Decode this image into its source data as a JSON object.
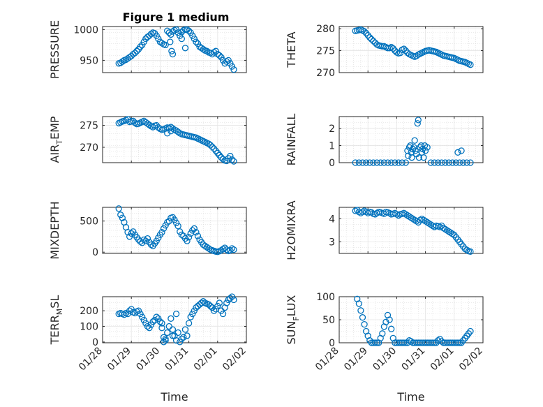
{
  "figure": {
    "title": "Figure 1 medium",
    "marker_color": "#0072BD",
    "axis_color": "#262626",
    "grid_color": "#d9d9d9"
  },
  "chart_data": [
    {
      "type": "scatter",
      "ylabel": "PRESSURE",
      "ylabel_sub": "",
      "ylim": [
        930,
        1005
      ],
      "yticks": [
        950,
        1000
      ],
      "ytick_labels": [
        "950",
        "1000"
      ],
      "xlim": [
        0,
        4
      ],
      "x_tick_labels": [],
      "x": [
        0.45,
        0.5,
        0.55,
        0.6,
        0.65,
        0.7,
        0.75,
        0.8,
        0.85,
        0.9,
        0.95,
        1.0,
        1.05,
        1.1,
        1.15,
        1.2,
        1.25,
        1.3,
        1.35,
        1.4,
        1.45,
        1.5,
        1.55,
        1.6,
        1.65,
        1.7,
        1.75,
        1.8,
        1.85,
        1.9,
        1.95,
        2.0,
        2.05,
        2.1,
        2.15,
        2.2,
        2.25,
        2.3,
        2.35,
        2.4,
        2.45,
        2.5,
        2.55,
        2.6,
        2.65,
        2.7,
        2.75,
        2.8,
        2.85,
        2.9,
        2.95,
        3.0,
        3.05,
        3.1,
        3.15,
        3.2,
        3.25,
        3.3,
        3.35,
        3.4,
        3.45,
        3.5,
        3.55,
        3.6,
        3.65,
        1.88,
        1.92,
        1.95,
        2.2,
        2.3
      ],
      "y": [
        945,
        946,
        948,
        950,
        951,
        953,
        955,
        957,
        960,
        962,
        965,
        968,
        972,
        975,
        980,
        985,
        988,
        990,
        993,
        995,
        994,
        990,
        985,
        980,
        978,
        976,
        975,
        998,
        995,
        992,
        997,
        999,
        1000,
        995,
        990,
        996,
        999,
        1000,
        1000,
        998,
        995,
        990,
        985,
        980,
        977,
        972,
        970,
        968,
        966,
        965,
        963,
        962,
        960,
        963,
        965,
        960,
        958,
        955,
        950,
        945,
        948,
        950,
        945,
        940,
        935,
        980,
        965,
        960,
        985,
        970
      ]
    },
    {
      "type": "scatter",
      "ylabel": "THETA",
      "ylabel_sub": "",
      "ylim": [
        270,
        280.5
      ],
      "yticks": [
        270,
        275,
        280
      ],
      "ytick_labels": [
        "270",
        "275",
        "280"
      ],
      "xlim": [
        0,
        4
      ],
      "x_tick_labels": [],
      "x": [
        0.45,
        0.5,
        0.55,
        0.6,
        0.65,
        0.7,
        0.75,
        0.8,
        0.85,
        0.9,
        0.95,
        1.0,
        1.05,
        1.1,
        1.15,
        1.2,
        1.25,
        1.3,
        1.35,
        1.4,
        1.45,
        1.5,
        1.55,
        1.6,
        1.65,
        1.7,
        1.75,
        1.8,
        1.85,
        1.9,
        1.95,
        2.0,
        2.05,
        2.1,
        2.15,
        2.2,
        2.25,
        2.3,
        2.35,
        2.4,
        2.45,
        2.5,
        2.55,
        2.6,
        2.65,
        2.7,
        2.75,
        2.8,
        2.85,
        2.9,
        2.95,
        3.0,
        3.05,
        3.1,
        3.15,
        3.2,
        3.25,
        3.3,
        3.35,
        3.4,
        3.45,
        3.5,
        3.55,
        3.6,
        3.65
      ],
      "y": [
        279.5,
        279.6,
        279.7,
        279.8,
        279.6,
        279.4,
        279.0,
        278.5,
        278.0,
        277.6,
        277.2,
        276.8,
        276.4,
        276.2,
        276.1,
        276.0,
        276.0,
        275.8,
        275.6,
        275.6,
        275.8,
        275.5,
        275.0,
        274.6,
        274.4,
        274.5,
        275.2,
        275.4,
        275.0,
        274.5,
        274.2,
        274.0,
        273.8,
        273.6,
        273.8,
        274.1,
        274.3,
        274.5,
        274.7,
        274.9,
        275.0,
        275.1,
        275.0,
        274.9,
        274.8,
        274.7,
        274.5,
        274.3,
        274.1,
        273.9,
        273.8,
        273.7,
        273.6,
        273.5,
        273.4,
        273.3,
        273.1,
        272.9,
        272.7,
        272.6,
        272.5,
        272.4,
        272.2,
        272.0,
        271.8
      ]
    },
    {
      "type": "scatter",
      "ylabel": "AIR",
      "ylabel_sub": "T",
      "ylabel_tail": "EMP",
      "ylim": [
        266.5,
        277
      ],
      "yticks": [
        270,
        275
      ],
      "ytick_labels": [
        "270",
        "275"
      ],
      "xlim": [
        0,
        4
      ],
      "x_tick_labels": [],
      "x": [
        0.45,
        0.5,
        0.55,
        0.6,
        0.65,
        0.7,
        0.75,
        0.8,
        0.85,
        0.9,
        0.95,
        1.0,
        1.05,
        1.1,
        1.15,
        1.2,
        1.25,
        1.3,
        1.35,
        1.4,
        1.45,
        1.5,
        1.55,
        1.6,
        1.65,
        1.7,
        1.75,
        1.8,
        1.85,
        1.9,
        1.95,
        2.0,
        2.05,
        2.1,
        2.15,
        2.2,
        2.25,
        2.3,
        2.35,
        2.4,
        2.45,
        2.5,
        2.55,
        2.6,
        2.65,
        2.7,
        2.75,
        2.8,
        2.85,
        2.9,
        2.95,
        3.0,
        3.05,
        3.1,
        3.15,
        3.2,
        3.25,
        3.3,
        3.35,
        3.4,
        3.45,
        3.5,
        3.55,
        3.6,
        3.65,
        1.8,
        1.9
      ],
      "y": [
        275.5,
        275.7,
        275.9,
        276.0,
        276.2,
        276.4,
        275.8,
        275.9,
        276.0,
        275.6,
        275.3,
        275.4,
        275.6,
        275.8,
        276.0,
        275.7,
        275.4,
        275.1,
        274.8,
        274.6,
        274.9,
        275.0,
        274.5,
        274.2,
        274.0,
        274.1,
        274.3,
        274.5,
        274.4,
        274.6,
        274.3,
        274.0,
        273.8,
        273.5,
        273.2,
        273.0,
        272.9,
        272.8,
        272.7,
        272.6,
        272.5,
        272.4,
        272.3,
        272.2,
        272.0,
        271.8,
        271.6,
        271.4,
        271.2,
        271.0,
        270.8,
        270.5,
        270.1,
        269.7,
        269.2,
        268.7,
        268.2,
        267.7,
        267.3,
        267.0,
        266.9,
        267.5,
        268.0,
        267.2,
        266.8,
        273.2,
        273.7
      ]
    },
    {
      "type": "scatter",
      "ylabel": "RAINFALL",
      "ylabel_sub": "",
      "ylim": [
        0,
        2.7
      ],
      "yticks": [
        0,
        1,
        2
      ],
      "ytick_labels": [
        "0",
        "1",
        "2"
      ],
      "xlim": [
        0,
        4
      ],
      "x_tick_labels": [],
      "x": [
        0.45,
        0.55,
        0.65,
        0.75,
        0.85,
        0.95,
        1.05,
        1.15,
        1.25,
        1.35,
        1.45,
        1.55,
        1.65,
        1.75,
        1.85,
        1.9,
        1.92,
        1.95,
        1.98,
        2.0,
        2.02,
        2.05,
        2.08,
        2.1,
        2.12,
        2.15,
        2.18,
        2.2,
        2.22,
        2.25,
        2.28,
        2.3,
        2.32,
        2.35,
        2.38,
        2.4,
        2.45,
        2.55,
        2.65,
        2.75,
        2.85,
        2.95,
        3.05,
        3.15,
        3.25,
        3.3,
        3.35,
        3.4,
        3.45,
        3.55,
        3.65
      ],
      "y": [
        0,
        0,
        0,
        0,
        0,
        0,
        0,
        0,
        0,
        0,
        0,
        0,
        0,
        0,
        0,
        0.7,
        0.4,
        0.9,
        1.0,
        0.6,
        0.3,
        0.8,
        0.9,
        1.3,
        0.7,
        0.5,
        2.3,
        2.5,
        0.3,
        0.9,
        1.0,
        0.6,
        0.8,
        0.3,
        1.0,
        0.7,
        0.9,
        0,
        0,
        0,
        0,
        0,
        0,
        0,
        0,
        0.6,
        0,
        0.7,
        0,
        0,
        0
      ]
    },
    {
      "type": "scatter",
      "ylabel": "MIXDEPTH",
      "ylabel_sub": "",
      "ylim": [
        -20,
        720
      ],
      "yticks": [
        0,
        500
      ],
      "ytick_labels": [
        "0",
        "500"
      ],
      "xlim": [
        0,
        4
      ],
      "x_tick_labels": [],
      "x": [
        0.45,
        0.5,
        0.55,
        0.6,
        0.65,
        0.7,
        0.75,
        0.8,
        0.85,
        0.9,
        0.95,
        1.0,
        1.05,
        1.1,
        1.15,
        1.2,
        1.25,
        1.3,
        1.35,
        1.4,
        1.45,
        1.5,
        1.55,
        1.6,
        1.65,
        1.7,
        1.75,
        1.8,
        1.85,
        1.9,
        1.95,
        2.0,
        2.05,
        2.1,
        2.15,
        2.2,
        2.25,
        2.3,
        2.35,
        2.4,
        2.45,
        2.5,
        2.55,
        2.6,
        2.65,
        2.7,
        2.75,
        2.8,
        2.85,
        2.9,
        2.95,
        3.0,
        3.05,
        3.1,
        3.15,
        3.2,
        3.25,
        3.3,
        3.35,
        3.4,
        3.45,
        3.5,
        3.55,
        3.6,
        3.65
      ],
      "y": [
        700,
        600,
        550,
        480,
        400,
        320,
        250,
        300,
        330,
        280,
        240,
        200,
        170,
        150,
        200,
        180,
        220,
        160,
        120,
        100,
        140,
        180,
        230,
        280,
        320,
        380,
        430,
        480,
        500,
        550,
        560,
        520,
        470,
        420,
        330,
        280,
        260,
        220,
        180,
        240,
        300,
        350,
        380,
        320,
        260,
        200,
        160,
        120,
        100,
        80,
        60,
        40,
        30,
        20,
        10,
        5,
        15,
        30,
        50,
        70,
        40,
        20,
        30,
        60,
        40
      ]
    },
    {
      "type": "scatter",
      "ylabel": "H2OMIXRA",
      "ylabel_sub": "",
      "ylim": [
        2.5,
        4.5
      ],
      "yticks": [
        3,
        4
      ],
      "ytick_labels": [
        "3",
        "4"
      ],
      "xlim": [
        0,
        4
      ],
      "x_tick_labels": [],
      "x": [
        0.45,
        0.5,
        0.55,
        0.6,
        0.65,
        0.7,
        0.75,
        0.8,
        0.85,
        0.9,
        0.95,
        1.0,
        1.05,
        1.1,
        1.15,
        1.2,
        1.25,
        1.3,
        1.35,
        1.4,
        1.45,
        1.5,
        1.55,
        1.6,
        1.65,
        1.7,
        1.75,
        1.8,
        1.85,
        1.9,
        1.95,
        2.0,
        2.05,
        2.1,
        2.15,
        2.2,
        2.25,
        2.3,
        2.35,
        2.4,
        2.45,
        2.5,
        2.55,
        2.6,
        2.65,
        2.7,
        2.75,
        2.8,
        2.85,
        2.9,
        2.95,
        3.0,
        3.05,
        3.1,
        3.15,
        3.2,
        3.25,
        3.3,
        3.35,
        3.4,
        3.45,
        3.5,
        3.55,
        3.6,
        3.65
      ],
      "y": [
        4.35,
        4.38,
        4.3,
        4.25,
        4.3,
        4.35,
        4.3,
        4.25,
        4.3,
        4.28,
        4.22,
        4.2,
        4.25,
        4.3,
        4.28,
        4.25,
        4.22,
        4.3,
        4.28,
        4.25,
        4.2,
        4.22,
        4.25,
        4.2,
        4.15,
        4.2,
        4.22,
        4.25,
        4.2,
        4.15,
        4.1,
        4.05,
        4.0,
        3.95,
        3.9,
        3.85,
        3.95,
        4.0,
        3.95,
        3.9,
        3.85,
        3.8,
        3.75,
        3.7,
        3.65,
        3.7,
        3.68,
        3.65,
        3.7,
        3.6,
        3.55,
        3.5,
        3.45,
        3.4,
        3.35,
        3.3,
        3.2,
        3.1,
        3.0,
        2.9,
        2.8,
        2.7,
        2.65,
        2.6,
        2.58
      ]
    },
    {
      "type": "scatter",
      "ylabel": "TERR",
      "ylabel_sub": "M",
      "ylabel_tail": "SL",
      "ylim": [
        -5,
        290
      ],
      "yticks": [
        0,
        100,
        200
      ],
      "ytick_labels": [
        "0",
        "100",
        "200"
      ],
      "xlim": [
        0,
        4
      ],
      "x_tick_labels": [
        "01/28",
        "01/29",
        "01/30",
        "01/31",
        "02/01",
        "02/02"
      ],
      "x": [
        0.45,
        0.5,
        0.55,
        0.6,
        0.65,
        0.7,
        0.75,
        0.8,
        0.85,
        0.9,
        0.95,
        1.0,
        1.05,
        1.1,
        1.15,
        1.2,
        1.25,
        1.3,
        1.35,
        1.4,
        1.45,
        1.5,
        1.55,
        1.6,
        1.65,
        1.7,
        1.75,
        1.8,
        1.85,
        1.9,
        1.95,
        2.0,
        2.05,
        2.1,
        2.15,
        2.2,
        2.25,
        2.3,
        2.35,
        2.4,
        2.45,
        2.5,
        2.55,
        2.6,
        2.65,
        2.7,
        2.75,
        2.8,
        2.85,
        2.9,
        2.95,
        3.0,
        3.05,
        3.1,
        3.15,
        3.2,
        3.25,
        3.3,
        3.35,
        3.4,
        3.45,
        3.5,
        3.55,
        3.6,
        3.65,
        1.65,
        1.7,
        1.75,
        1.95,
        2.05
      ],
      "y": [
        180,
        185,
        180,
        175,
        185,
        180,
        200,
        210,
        190,
        185,
        195,
        200,
        180,
        160,
        140,
        120,
        100,
        90,
        110,
        130,
        140,
        160,
        150,
        130,
        120,
        30,
        20,
        60,
        100,
        150,
        80,
        40,
        10,
        60,
        0,
        20,
        30,
        80,
        40,
        120,
        160,
        180,
        200,
        220,
        230,
        240,
        250,
        260,
        250,
        245,
        240,
        230,
        220,
        200,
        210,
        230,
        250,
        200,
        180,
        220,
        250,
        270,
        280,
        290,
        270,
        90,
        0,
        10,
        40,
        180
      ]
    },
    {
      "type": "scatter",
      "ylabel": "SUN",
      "ylabel_sub": "F",
      "ylabel_tail": "LUX",
      "ylim": [
        0,
        100
      ],
      "yticks": [
        0,
        50,
        100
      ],
      "ytick_labels": [
        "0",
        "50",
        "100"
      ],
      "xlim": [
        0,
        4
      ],
      "x_tick_labels": [
        "01/28",
        "01/29",
        "01/30",
        "01/31",
        "02/01",
        "02/02"
      ],
      "x": [
        0.5,
        0.55,
        0.6,
        0.65,
        0.7,
        0.75,
        0.8,
        0.85,
        0.9,
        0.95,
        1.0,
        1.05,
        1.1,
        1.15,
        1.2,
        1.25,
        1.3,
        1.35,
        1.4,
        1.45,
        1.5,
        1.55,
        1.6,
        1.65,
        1.7,
        1.75,
        1.8,
        1.85,
        1.9,
        1.95,
        2.0,
        2.05,
        2.1,
        2.15,
        2.2,
        2.25,
        2.3,
        2.35,
        2.4,
        2.45,
        2.5,
        2.55,
        2.6,
        2.65,
        2.7,
        2.75,
        2.8,
        2.85,
        2.9,
        2.95,
        3.0,
        3.05,
        3.1,
        3.15,
        3.2,
        3.25,
        3.3,
        3.35,
        3.4,
        3.45,
        3.5,
        3.55,
        3.6,
        3.65
      ],
      "y": [
        95,
        85,
        70,
        55,
        40,
        25,
        15,
        5,
        0,
        0,
        0,
        0,
        0,
        10,
        20,
        35,
        45,
        60,
        50,
        30,
        10,
        0,
        0,
        0,
        0,
        0,
        0,
        0,
        0,
        5,
        3,
        0,
        0,
        0,
        0,
        0,
        0,
        0,
        0,
        0,
        0,
        0,
        0,
        0,
        0,
        5,
        8,
        3,
        0,
        0,
        0,
        0,
        0,
        0,
        0,
        0,
        0,
        0,
        0,
        5,
        10,
        15,
        20,
        25
      ]
    }
  ],
  "xlabel": "Time"
}
